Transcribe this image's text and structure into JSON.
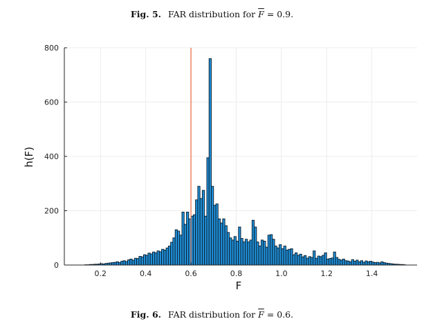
{
  "captions": {
    "top": {
      "fig": "Fig. 5.",
      "text": "FAR distribution for",
      "symbol": "F",
      "value": "= 0.9."
    },
    "bottom": {
      "fig": "Fig. 6.",
      "text": "FAR distribution for",
      "symbol": "F",
      "value": "= 0.6."
    }
  },
  "colors": {
    "bar_fill": "#1f8fd8",
    "bar_stroke": "#0c1a26",
    "marker_line": "#e8663c",
    "grid": "#ececec",
    "axis": "#222222"
  },
  "chart_data": {
    "type": "bar",
    "title": "",
    "xlabel": "F",
    "ylabel": "h(F)",
    "xlim": [
      0.04,
      1.6
    ],
    "ylim": [
      0,
      800
    ],
    "xticks": [
      0.2,
      0.4,
      0.6,
      0.8,
      1.0,
      1.2,
      1.4
    ],
    "xtick_labels": [
      "0.2",
      "0.4",
      "0.6",
      "0.8",
      "1.0",
      "1.2",
      "1.4"
    ],
    "yticks": [
      0,
      200,
      400,
      600,
      800
    ],
    "ytick_labels": [
      "0",
      "200",
      "400",
      "600",
      "800"
    ],
    "grid": true,
    "marker_x": 0.6,
    "bin_width": 0.01,
    "bins_start": 0.13,
    "values": [
      1,
      1,
      2,
      2,
      3,
      3,
      4,
      5,
      4,
      6,
      7,
      8,
      9,
      10,
      12,
      9,
      14,
      16,
      13,
      19,
      22,
      18,
      25,
      24,
      32,
      30,
      38,
      36,
      44,
      41,
      48,
      45,
      52,
      49,
      58,
      55,
      63,
      70,
      84,
      100,
      130,
      125,
      110,
      195,
      150,
      195,
      170,
      180,
      185,
      240,
      290,
      245,
      275,
      180,
      395,
      760,
      290,
      220,
      225,
      170,
      155,
      170,
      145,
      120,
      100,
      92,
      105,
      88,
      140,
      98,
      85,
      95,
      85,
      92,
      165,
      140,
      85,
      70,
      92,
      88,
      66,
      110,
      112,
      95,
      70,
      63,
      75,
      60,
      70,
      55,
      58,
      60,
      38,
      45,
      36,
      40,
      30,
      35,
      25,
      31,
      28,
      52,
      25,
      33,
      31,
      36,
      45,
      22,
      24,
      26,
      48,
      28,
      21,
      18,
      22,
      16,
      15,
      12,
      20,
      14,
      18,
      12,
      16,
      10,
      15,
      12,
      14,
      11,
      9,
      10,
      8,
      12,
      9,
      7,
      6,
      5,
      4,
      3,
      3,
      2,
      2,
      1
    ]
  }
}
